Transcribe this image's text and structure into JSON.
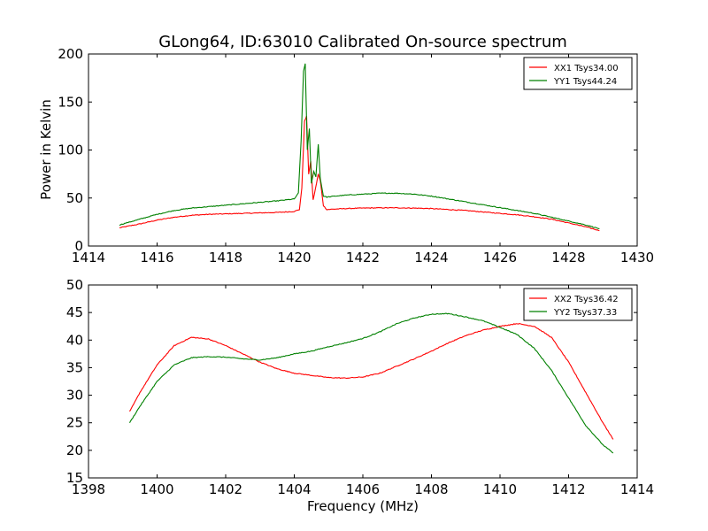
{
  "chart_data": [
    {
      "type": "line",
      "title": "GLong64, ID:63010 Calibrated On-source spectrum",
      "xlabel": "",
      "ylabel": "Power in Kelvin",
      "xlim": [
        1414,
        1430
      ],
      "ylim": [
        0,
        200
      ],
      "xticks": [
        "1414",
        "1416",
        "1418",
        "1420",
        "1422",
        "1424",
        "1426",
        "1428",
        "1430"
      ],
      "yticks": [
        "0",
        "50",
        "100",
        "150",
        "200"
      ],
      "grid": false,
      "legend_position": "top-right",
      "series": [
        {
          "name": "XX1 Tsys34.00",
          "color": "#ff0000",
          "x": [
            1414.9,
            1415.5,
            1416.0,
            1416.5,
            1417.0,
            1417.5,
            1418.0,
            1418.5,
            1419.0,
            1419.5,
            1420.0,
            1420.15,
            1420.22,
            1420.3,
            1420.36,
            1420.42,
            1420.48,
            1420.55,
            1420.62,
            1420.7,
            1420.76,
            1420.85,
            1420.95,
            1421.2,
            1421.5,
            1422.0,
            1422.5,
            1423.0,
            1423.5,
            1424.0,
            1424.5,
            1425.0,
            1425.5,
            1426.0,
            1426.5,
            1427.0,
            1427.5,
            1428.0,
            1428.5,
            1428.9
          ],
          "y": [
            19,
            23,
            27,
            30,
            32,
            33,
            33.5,
            34,
            34.5,
            35,
            36,
            38,
            60,
            130,
            135,
            75,
            88,
            48,
            60,
            75,
            68,
            42,
            38,
            38.5,
            39,
            39.5,
            39.8,
            39.8,
            39.5,
            39,
            38,
            37,
            35.5,
            34,
            32.5,
            30.5,
            28,
            24,
            20,
            16
          ]
        },
        {
          "name": "YY1 Tsys44.24",
          "color": "#008000",
          "x": [
            1414.9,
            1415.5,
            1416.0,
            1416.5,
            1417.0,
            1417.5,
            1418.0,
            1418.5,
            1419.0,
            1419.5,
            1420.0,
            1420.12,
            1420.2,
            1420.27,
            1420.32,
            1420.38,
            1420.44,
            1420.5,
            1420.57,
            1420.63,
            1420.7,
            1420.76,
            1420.85,
            1420.95,
            1421.2,
            1421.5,
            1422.0,
            1422.5,
            1423.0,
            1423.5,
            1424.0,
            1424.5,
            1425.0,
            1425.5,
            1426.0,
            1426.5,
            1427.0,
            1427.5,
            1428.0,
            1428.5,
            1428.9
          ],
          "y": [
            22,
            28,
            33,
            37,
            39.5,
            41,
            42.5,
            44,
            45.5,
            47,
            49,
            55,
            110,
            182,
            190,
            100,
            122,
            65,
            78,
            72,
            106,
            70,
            52,
            51,
            52,
            53,
            54,
            55,
            55,
            54,
            52,
            49,
            46,
            43,
            40,
            37,
            34,
            30,
            26,
            22,
            18
          ]
        }
      ]
    },
    {
      "type": "line",
      "title": "",
      "xlabel": "Frequency (MHz)",
      "ylabel": "",
      "xlim": [
        1398,
        1414
      ],
      "ylim": [
        15,
        50
      ],
      "xticks": [
        "1398",
        "1400",
        "1402",
        "1404",
        "1406",
        "1408",
        "1410",
        "1412",
        "1414"
      ],
      "yticks": [
        "15",
        "20",
        "25",
        "30",
        "35",
        "40",
        "45",
        "50"
      ],
      "grid": false,
      "legend_position": "top-right",
      "series": [
        {
          "name": "XX2 Tsys36.42",
          "color": "#ff0000",
          "x": [
            1399.2,
            1399.5,
            1400.0,
            1400.5,
            1401.0,
            1401.5,
            1402.0,
            1402.5,
            1403.0,
            1403.5,
            1404.0,
            1404.5,
            1405.0,
            1405.5,
            1406.0,
            1406.5,
            1407.0,
            1407.5,
            1408.0,
            1408.5,
            1409.0,
            1409.5,
            1410.0,
            1410.5,
            1411.0,
            1411.5,
            1412.0,
            1412.5,
            1413.0,
            1413.3
          ],
          "y": [
            27,
            30.5,
            35.5,
            39,
            40.5,
            40.2,
            39,
            37.5,
            36,
            34.8,
            34,
            33.6,
            33.2,
            33.1,
            33.3,
            34,
            35.3,
            36.6,
            38,
            39.5,
            40.8,
            41.8,
            42.5,
            43,
            42.5,
            40.5,
            36,
            30.5,
            25,
            22
          ]
        },
        {
          "name": "YY2 Tsys37.33",
          "color": "#008000",
          "x": [
            1399.2,
            1399.5,
            1400.0,
            1400.5,
            1401.0,
            1401.5,
            1402.0,
            1402.5,
            1403.0,
            1403.5,
            1404.0,
            1404.5,
            1405.0,
            1405.5,
            1406.0,
            1406.5,
            1407.0,
            1407.5,
            1408.0,
            1408.5,
            1409.0,
            1409.5,
            1410.0,
            1410.5,
            1411.0,
            1411.5,
            1412.0,
            1412.5,
            1413.0,
            1413.3
          ],
          "y": [
            25,
            28,
            32.5,
            35.5,
            36.8,
            37,
            36.9,
            36.6,
            36.4,
            36.8,
            37.5,
            38,
            38.8,
            39.5,
            40.3,
            41.5,
            43,
            44,
            44.7,
            44.8,
            44.2,
            43.5,
            42.3,
            41,
            38.5,
            34.5,
            29.5,
            24.5,
            21,
            19.5
          ]
        }
      ]
    }
  ]
}
